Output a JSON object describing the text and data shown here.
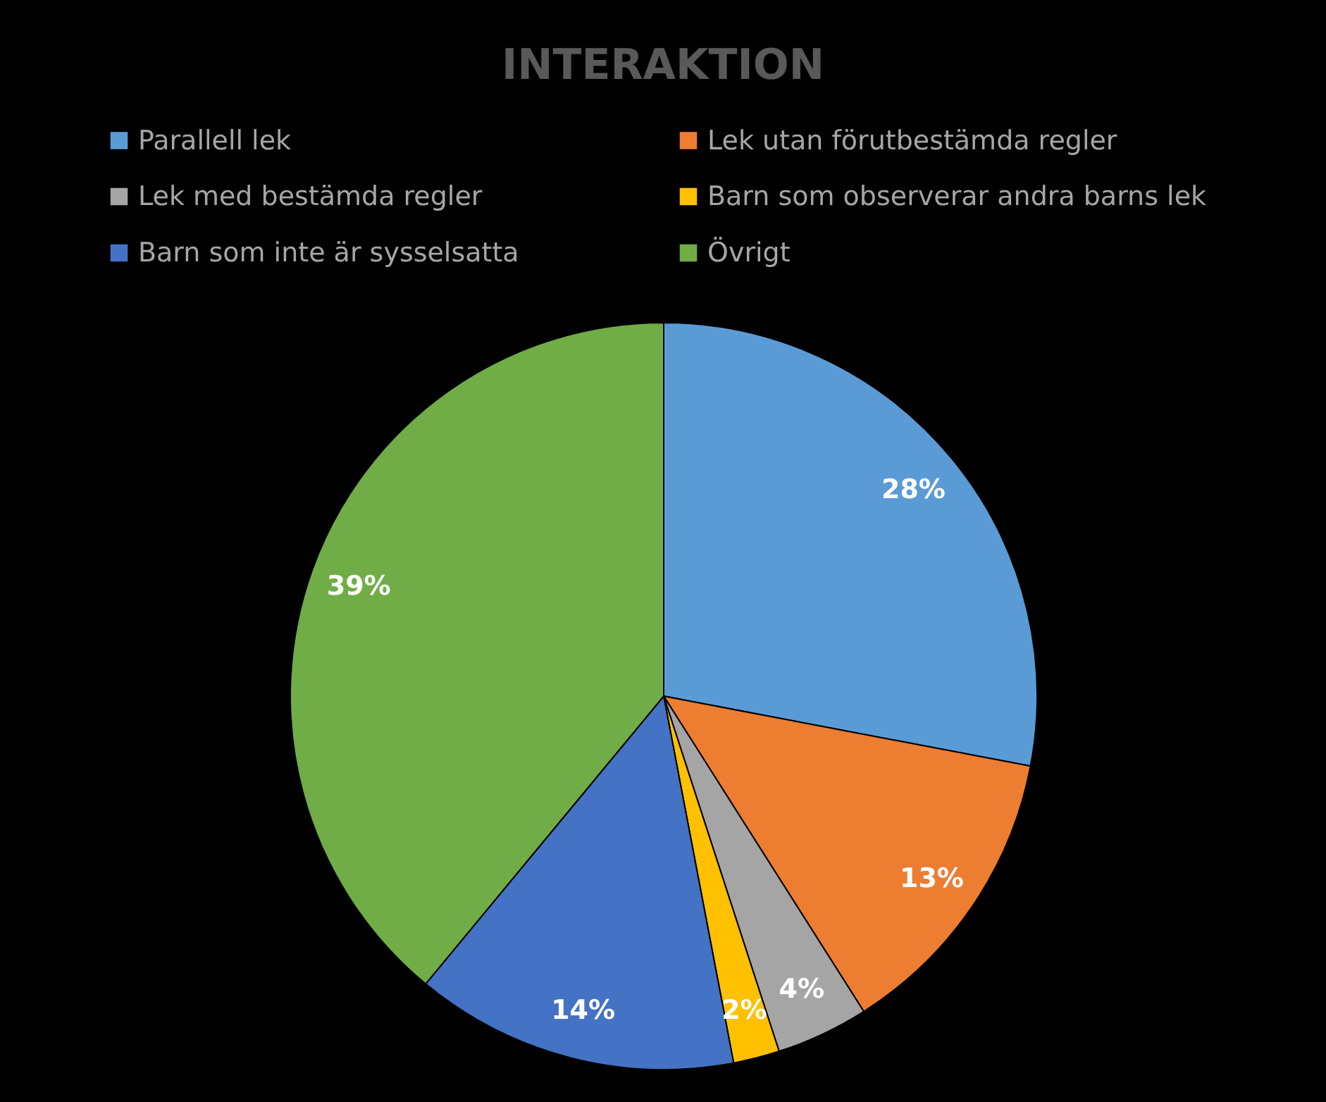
{
  "chart_data": {
    "type": "pie",
    "title": "INTERAKTION",
    "categories": [
      "Parallell lek",
      "Lek utan förutbestämda regler",
      "Lek med bestämda regler",
      "Barn som observerar andra barns lek",
      "Barn som inte är sysselsatta",
      "Övrigt"
    ],
    "values": [
      28,
      13,
      4,
      2,
      14,
      39
    ],
    "colors": [
      "#5b9bd5",
      "#ed7d31",
      "#a5a5a5",
      "#ffc000",
      "#4472c4",
      "#70ad47"
    ],
    "value_labels": [
      "28%",
      "13%",
      "4%",
      "2%",
      "14%",
      "39%"
    ],
    "legend": "top"
  }
}
